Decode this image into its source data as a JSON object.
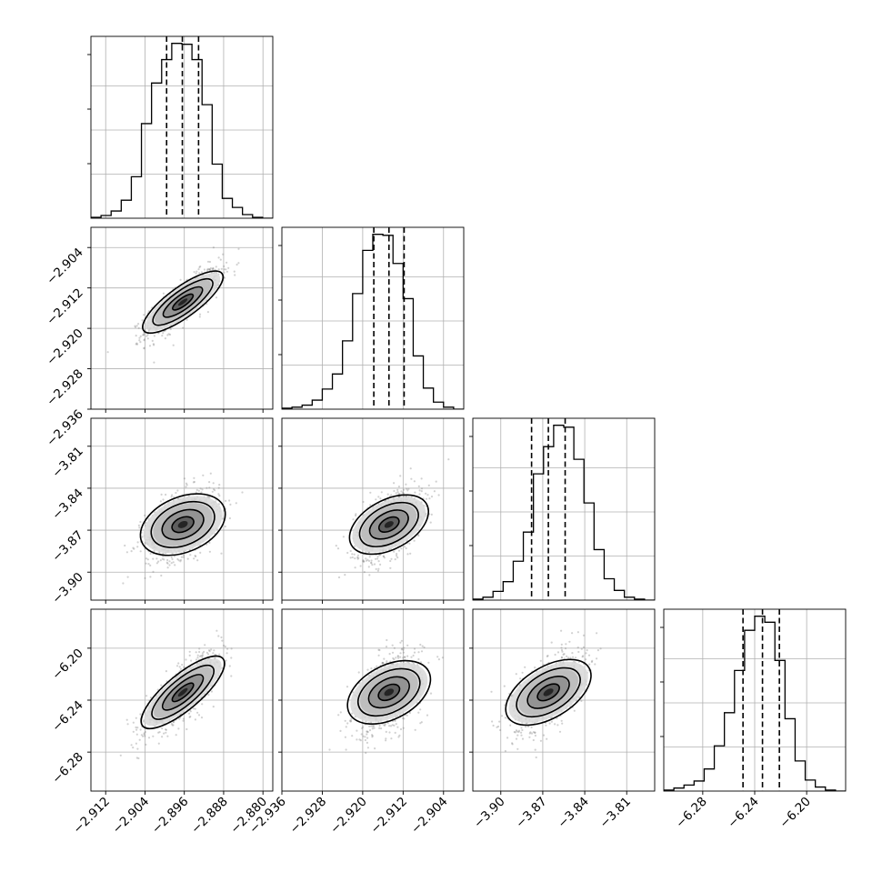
{
  "chart_data": {
    "type": "corner",
    "grid": true,
    "quantile_lines": "dashed",
    "parameters": [
      {
        "mean": -2.8963,
        "sd": 0.0036,
        "range": [
          -2.915,
          -2.878
        ],
        "ticks": [
          -2.912,
          -2.904,
          -2.896,
          -2.888,
          -2.88
        ],
        "tick_labels": [
          "−2.912",
          "−2.904",
          "−2.896",
          "−2.888",
          "−2.880"
        ],
        "quantiles": [
          -2.8996,
          -2.8964,
          -2.8931
        ],
        "hist_counts": [
          1,
          3,
          8,
          20,
          46,
          105,
          150,
          176,
          194,
          193,
          176,
          126,
          60,
          22,
          12,
          4,
          1,
          0
        ]
      },
      {
        "mean": -2.9148,
        "sd": 0.0031,
        "range": [
          -2.936,
          -2.9
        ],
        "ticks": [
          -2.936,
          -2.928,
          -2.92,
          -2.912,
          -2.904
        ],
        "tick_labels": [
          "−2.936",
          "−2.928",
          "−2.920",
          "−2.912",
          "−2.904"
        ],
        "quantiles": [
          -2.9178,
          -2.9148,
          -2.9118
        ],
        "hist_counts": [
          1,
          2,
          4,
          9,
          20,
          35,
          68,
          115,
          158,
          174,
          173,
          145,
          110,
          53,
          21,
          7,
          2,
          0
        ]
      },
      {
        "mean": -3.866,
        "sd": 0.012,
        "range": [
          -3.92,
          -3.79
        ],
        "ticks": [
          -3.9,
          -3.87,
          -3.84,
          -3.81
        ],
        "tick_labels": [
          "−3.90",
          "−3.87",
          "−3.84",
          "−3.81"
        ],
        "quantiles": [
          -3.878,
          -3.866,
          -3.854
        ],
        "hist_counts": [
          1,
          3,
          9,
          19,
          40,
          70,
          130,
          158,
          180,
          178,
          145,
          100,
          52,
          22,
          10,
          3,
          1,
          0
        ]
      },
      {
        "mean": -6.234,
        "sd": 0.0143,
        "range": [
          -6.31,
          -6.17
        ],
        "ticks": [
          -6.28,
          -6.24,
          -6.2
        ],
        "tick_labels": [
          "−6.28",
          "−6.24",
          "−6.20"
        ],
        "quantiles": [
          -6.249,
          -6.234,
          -6.221
        ],
        "hist_counts": [
          1,
          3,
          6,
          10,
          22,
          45,
          78,
          120,
          160,
          174,
          168,
          130,
          72,
          30,
          11,
          4,
          1,
          0
        ]
      }
    ],
    "pairs": [
      {
        "row": 1,
        "col": 0,
        "corr": 0.82
      },
      {
        "row": 2,
        "col": 0,
        "corr": 0.45
      },
      {
        "row": 2,
        "col": 1,
        "corr": 0.5
      },
      {
        "row": 3,
        "col": 0,
        "corr": 0.8
      },
      {
        "row": 3,
        "col": 1,
        "corr": 0.45
      },
      {
        "row": 3,
        "col": 2,
        "corr": 0.55
      }
    ]
  }
}
